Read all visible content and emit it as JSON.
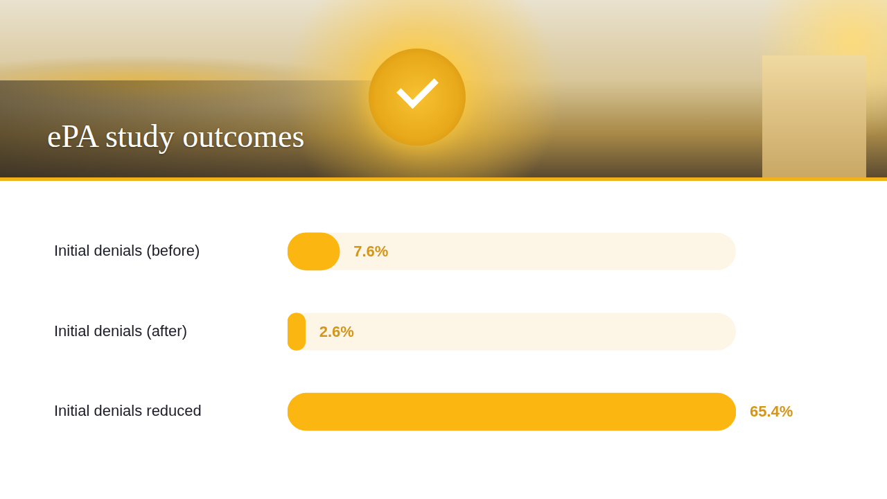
{
  "chart_data": {
    "type": "bar",
    "title": "ePA study outcomes",
    "orientation": "horizontal",
    "categories": [
      "Initial denials (before)",
      "Initial denials (after)",
      "Initial denials reduced"
    ],
    "values": [
      7.6,
      2.6,
      65.4
    ],
    "value_labels": [
      "7.6%",
      "2.6%",
      "65.4%"
    ],
    "color": "#fbb612",
    "xlim": [
      0,
      65.4
    ],
    "grid": false,
    "data_labels": true,
    "tick_labels": "y"
  }
}
